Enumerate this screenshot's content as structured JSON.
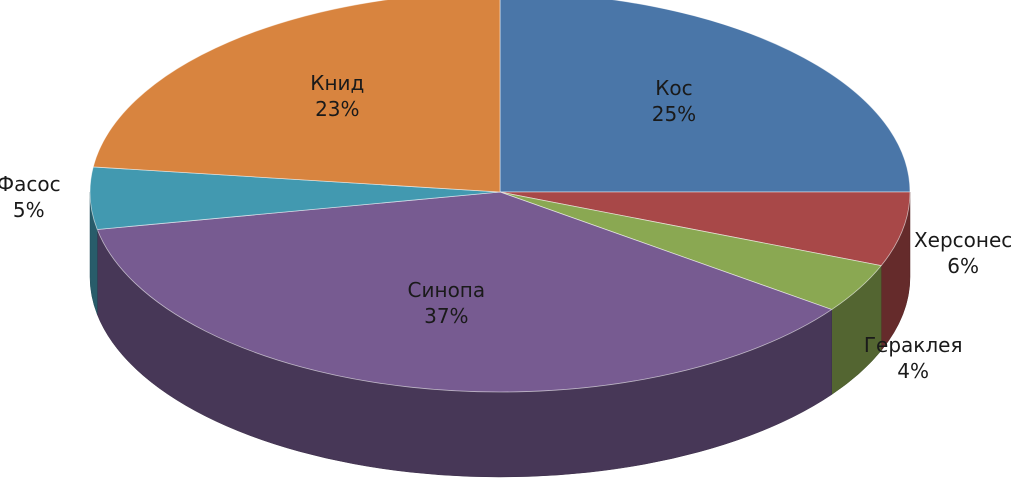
{
  "chart_data": {
    "type": "pie",
    "categories": [
      "Кос",
      "Херсонес",
      "Гераклея",
      "Синопа",
      "Фасос",
      "Книд"
    ],
    "values": [
      25,
      6,
      4,
      37,
      5,
      23
    ],
    "value_labels": [
      "25%",
      "6%",
      "4%",
      "37%",
      "5%",
      "23%"
    ],
    "colors": [
      "#4a76a8",
      "#a84848",
      "#8aa852",
      "#775b91",
      "#4299b0",
      "#d8843f"
    ]
  }
}
